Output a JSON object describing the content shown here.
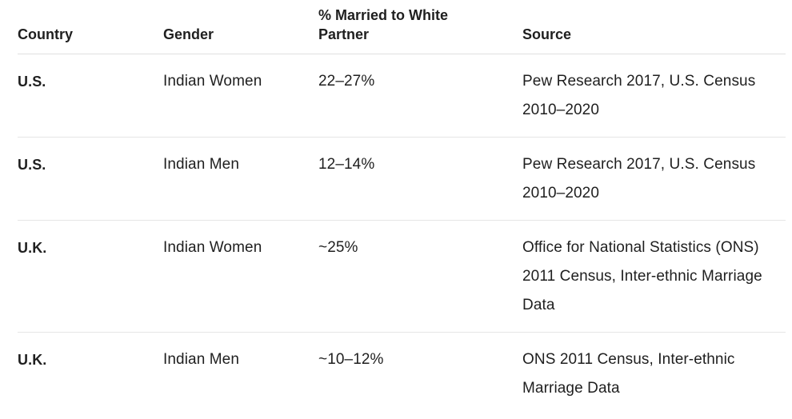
{
  "table": {
    "headers": {
      "country": "Country",
      "gender": "Gender",
      "percent": "% Married to White Partner",
      "source": "Source"
    },
    "rows": [
      {
        "country": "U.S.",
        "gender": "Indian Women",
        "percent": "22–27%",
        "source": "Pew Research 2017, U.S. Census 2010–2020"
      },
      {
        "country": "U.S.",
        "gender": "Indian Men",
        "percent": "12–14%",
        "source": "Pew Research 2017, U.S. Census 2010–2020"
      },
      {
        "country": "U.K.",
        "gender": "Indian Women",
        "percent": "~25%",
        "source": "Office for National Statistics (ONS) 2011 Census, Inter-ethnic Marriage Data"
      },
      {
        "country": "U.K.",
        "gender": "Indian Men",
        "percent": "~10–12%",
        "source": "ONS 2011 Census, Inter-ethnic Marriage Data"
      }
    ]
  }
}
